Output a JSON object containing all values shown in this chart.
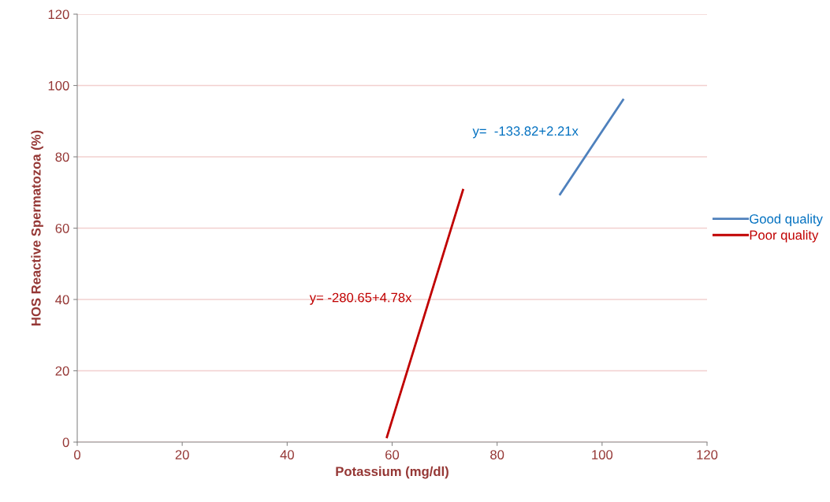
{
  "chart_data": {
    "type": "line",
    "xlabel": "Potassium (mg/dl)",
    "ylabel": "HOS Reactive Spermatozoa (%)",
    "xlim": [
      0,
      120
    ],
    "xticks": [
      0,
      20,
      40,
      60,
      80,
      100,
      120
    ],
    "ylim": [
      0,
      120
    ],
    "yticks": [
      0,
      20,
      40,
      60,
      80,
      100,
      120
    ],
    "grid": "y",
    "legend": "right",
    "marker": "none",
    "line_style": "solid",
    "series": [
      {
        "name": "Good quality",
        "color": "#4f81bd",
        "x": [
          92,
          104
        ],
        "values": [
          69.5,
          96.0
        ]
      },
      {
        "name": "Poor quality",
        "color": "#c00000",
        "x": [
          59,
          73.5
        ],
        "values": [
          1.4,
          70.7
        ]
      }
    ],
    "annotations": [
      "y=  -133.82+2.21x",
      "y= -280.65+4.78x"
    ]
  }
}
